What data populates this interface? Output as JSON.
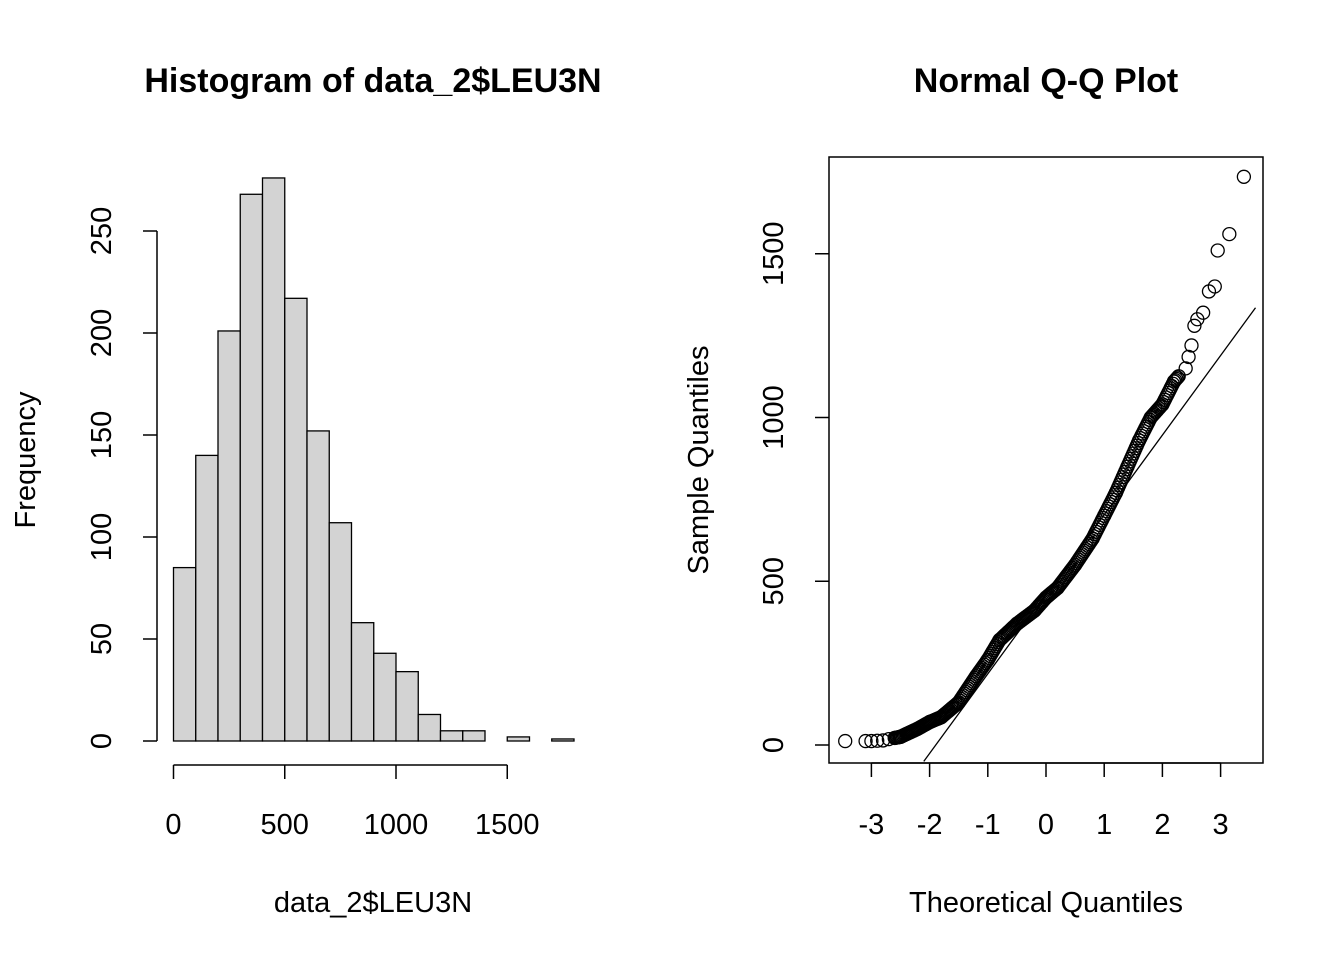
{
  "chart_data": [
    {
      "type": "bar",
      "title": "Histogram of data_2$LEU3N",
      "xlabel": "data_2$LEU3N",
      "ylabel": "Frequency",
      "bin_width": 100,
      "bin_edges": [
        0,
        100,
        200,
        300,
        400,
        500,
        600,
        700,
        800,
        900,
        1000,
        1100,
        1200,
        1300,
        1400,
        1500,
        1600,
        1700,
        1800
      ],
      "values": [
        85,
        140,
        201,
        268,
        276,
        217,
        152,
        107,
        58,
        43,
        34,
        13,
        5,
        5,
        0,
        2,
        0,
        1
      ],
      "xticks": [
        0,
        500,
        1000,
        1500
      ],
      "xtick_labels": [
        "0",
        "500",
        "1000",
        "1500"
      ],
      "yticks": [
        0,
        50,
        100,
        150,
        200,
        250
      ],
      "ytick_labels": [
        "0",
        "50",
        "100",
        "150",
        "200",
        "250"
      ],
      "ylim": [
        0,
        280
      ],
      "grid": false,
      "bar_color": "#d3d3d3"
    },
    {
      "type": "scatter",
      "title": "Normal Q-Q Plot",
      "xlabel": "Theoretical Quantiles",
      "ylabel": "Sample Quantiles",
      "xticks": [
        -3,
        -2,
        -1,
        0,
        1,
        2,
        3
      ],
      "xtick_labels": [
        "-3",
        "-2",
        "-1",
        "0",
        "1",
        "2",
        "3"
      ],
      "yticks": [
        0,
        500,
        1000,
        1500
      ],
      "ytick_labels": [
        "0",
        "500",
        "1000",
        "1500"
      ],
      "xlim": [
        -3.6,
        3.6
      ],
      "ylim": [
        -50,
        1780
      ],
      "grid": false,
      "reference_line": {
        "x1": -2.1,
        "y1": -50,
        "x2": 3.6,
        "y2": 1335
      },
      "anchor_quantiles": {
        "x": [
          -3.45,
          -3.1,
          -3.0,
          -2.9,
          -2.8,
          -2.7,
          -2.5,
          -2.2,
          -2.0,
          -1.8,
          -1.5,
          -1.2,
          -1.0,
          -0.8,
          -0.5,
          -0.2,
          0.0,
          0.2,
          0.5,
          0.8,
          1.0,
          1.2,
          1.4,
          1.6,
          1.8,
          2.0,
          2.2,
          2.4,
          2.45,
          2.5,
          2.55,
          2.6,
          2.7,
          2.8,
          2.9,
          2.95,
          3.15,
          3.4
        ],
        "y": [
          12,
          12,
          12,
          13,
          14,
          18,
          25,
          50,
          70,
          85,
          130,
          210,
          260,
          320,
          370,
          410,
          450,
          480,
          550,
          630,
          700,
          770,
          850,
          930,
          1000,
          1040,
          1110,
          1150,
          1185,
          1220,
          1280,
          1300,
          1320,
          1385,
          1400,
          1510,
          1560,
          1735
        ]
      },
      "marker": "open-circle"
    }
  ]
}
